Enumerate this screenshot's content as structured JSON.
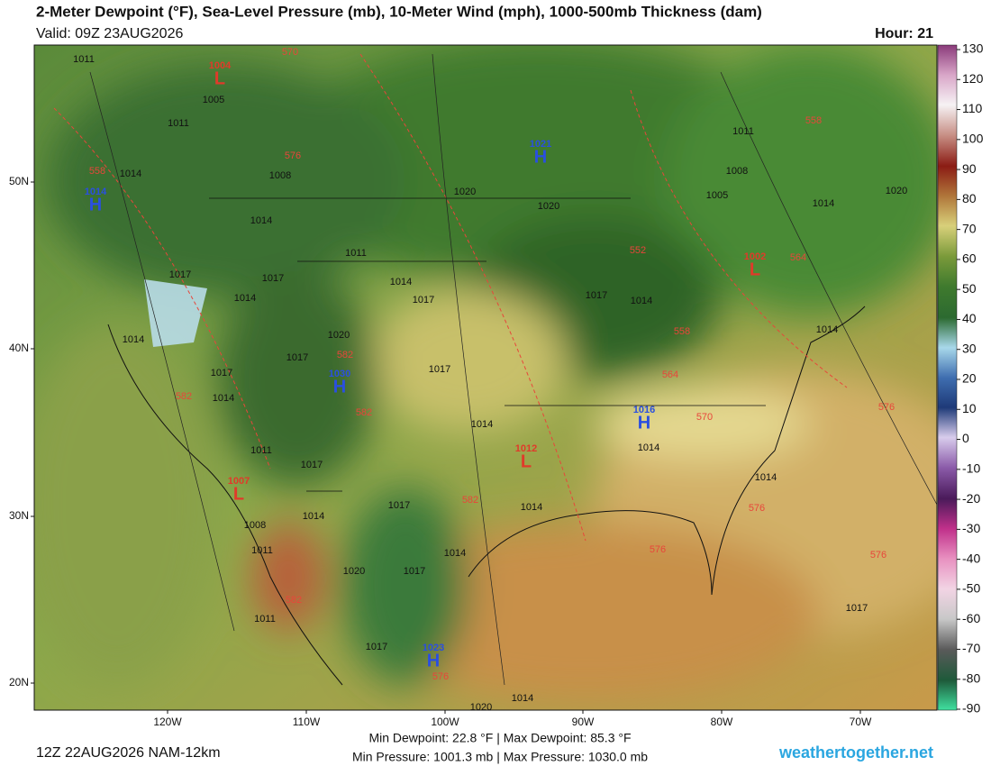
{
  "header": {
    "title": "2-Meter Dewpoint (°F), Sea-Level Pressure (mb), 10-Meter Wind (mph), 1000-500mb Thickness (dam)",
    "valid": "Valid: 09Z 23AUG2026",
    "hour": "Hour: 21"
  },
  "colorbar": {
    "ticks": [
      130,
      120,
      110,
      100,
      90,
      80,
      70,
      60,
      50,
      40,
      30,
      20,
      10,
      0,
      -10,
      -20,
      -30,
      -40,
      -50,
      -60,
      -70,
      -80,
      -90
    ]
  },
  "latitudes": [
    "50N",
    "40N",
    "30N",
    "20N"
  ],
  "longitudes": [
    "120W",
    "110W",
    "100W",
    "90W",
    "80W",
    "70W"
  ],
  "pressure_labels": [
    "1011",
    "1005",
    "1011",
    "1014",
    "1008",
    "1020",
    "1020",
    "1014",
    "1011",
    "1017",
    "1017",
    "1014",
    "1014",
    "1017",
    "1017",
    "1014",
    "1014",
    "1020",
    "1017",
    "1017",
    "1017",
    "1014",
    "1014",
    "1014",
    "1011",
    "1017",
    "1014",
    "1014",
    "1017",
    "1014",
    "1008",
    "1011",
    "1014",
    "1020",
    "1017",
    "1011",
    "1017",
    "1017",
    "1014",
    "1020",
    "1011",
    "1008",
    "1005",
    "1014",
    "1020",
    "1014"
  ],
  "thickness_labels": [
    "570",
    "576",
    "558",
    "552",
    "564",
    "558",
    "582",
    "582",
    "582",
    "558",
    "564",
    "570",
    "576",
    "582",
    "576",
    "576",
    "576",
    "582",
    "576"
  ],
  "centers": [
    {
      "type": "H",
      "value": "1021"
    },
    {
      "type": "H",
      "value": "1014"
    },
    {
      "type": "H",
      "value": "1030"
    },
    {
      "type": "H",
      "value": "1016"
    },
    {
      "type": "H",
      "value": "1023"
    },
    {
      "type": "L",
      "value": "1004"
    },
    {
      "type": "L",
      "value": "1002"
    },
    {
      "type": "L",
      "value": "1012"
    },
    {
      "type": "L",
      "value": "1007"
    }
  ],
  "footer": {
    "run": "12Z 22AUG2026 NAM-12km",
    "dewpoint_stats": "Min Dewpoint: 22.8 °F | Max Dewpoint: 85.3 °F",
    "pressure_stats": "Min Pressure: 1001.3 mb | Max Pressure: 1030.0 mb",
    "site": "weathertogether.net"
  }
}
